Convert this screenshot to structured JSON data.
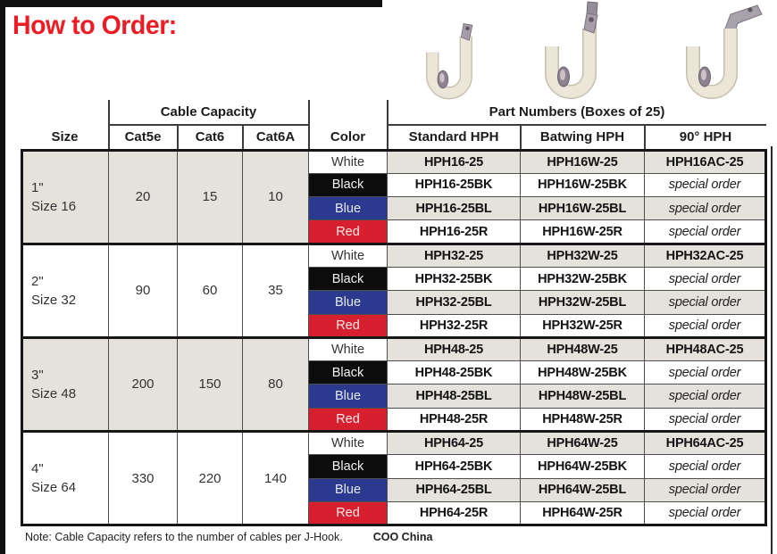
{
  "title": "How to Order:",
  "header": {
    "size": "Size",
    "cable_capacity": "Cable Capacity",
    "cat5e": "Cat5e",
    "cat6": "Cat6",
    "cat6a": "Cat6A",
    "color": "Color",
    "part_numbers": "Part Numbers (Boxes of 25)",
    "standard": "Standard HPH",
    "batwing": "Batwing HPH",
    "ninety": "90° HPH"
  },
  "special_order_label": "special order",
  "photos": [
    {
      "icon": "standard-hph-photo"
    },
    {
      "icon": "batwing-hph-photo"
    },
    {
      "icon": "90-degree-hph-photo"
    }
  ],
  "groups": [
    {
      "size_line1": "1\"",
      "size_line2": "Size 16",
      "cat5e": "20",
      "cat6": "15",
      "cat6a": "10",
      "rows": [
        {
          "color": "White",
          "standard": "HPH16-25",
          "batwing": "HPH16W-25",
          "ninety": "HPH16AC-25"
        },
        {
          "color": "Black",
          "standard": "HPH16-25BK",
          "batwing": "HPH16W-25BK",
          "ninety": "special order"
        },
        {
          "color": "Blue",
          "standard": "HPH16-25BL",
          "batwing": "HPH16W-25BL",
          "ninety": "special order"
        },
        {
          "color": "Red",
          "standard": "HPH16-25R",
          "batwing": "HPH16W-25R",
          "ninety": "special order"
        }
      ]
    },
    {
      "size_line1": "2\"",
      "size_line2": "Size 32",
      "cat5e": "90",
      "cat6": "60",
      "cat6a": "35",
      "rows": [
        {
          "color": "White",
          "standard": "HPH32-25",
          "batwing": "HPH32W-25",
          "ninety": "HPH32AC-25"
        },
        {
          "color": "Black",
          "standard": "HPH32-25BK",
          "batwing": "HPH32W-25BK",
          "ninety": "special order"
        },
        {
          "color": "Blue",
          "standard": "HPH32-25BL",
          "batwing": "HPH32W-25BL",
          "ninety": "special order"
        },
        {
          "color": "Red",
          "standard": "HPH32-25R",
          "batwing": "HPH32W-25R",
          "ninety": "special order"
        }
      ]
    },
    {
      "size_line1": "3\"",
      "size_line2": "Size 48",
      "cat5e": "200",
      "cat6": "150",
      "cat6a": "80",
      "rows": [
        {
          "color": "White",
          "standard": "HPH48-25",
          "batwing": "HPH48W-25",
          "ninety": "HPH48AC-25"
        },
        {
          "color": "Black",
          "standard": "HPH48-25BK",
          "batwing": "HPH48W-25BK",
          "ninety": "special order"
        },
        {
          "color": "Blue",
          "standard": "HPH48-25BL",
          "batwing": "HPH48W-25BL",
          "ninety": "special order"
        },
        {
          "color": "Red",
          "standard": "HPH48-25R",
          "batwing": "HPH48W-25R",
          "ninety": "special order"
        }
      ]
    },
    {
      "size_line1": "4\"",
      "size_line2": "Size 64",
      "cat5e": "330",
      "cat6": "220",
      "cat6a": "140",
      "rows": [
        {
          "color": "White",
          "standard": "HPH64-25",
          "batwing": "HPH64W-25",
          "ninety": "HPH64AC-25"
        },
        {
          "color": "Black",
          "standard": "HPH64-25BK",
          "batwing": "HPH64W-25BK",
          "ninety": "special order"
        },
        {
          "color": "Blue",
          "standard": "HPH64-25BL",
          "batwing": "HPH64W-25BL",
          "ninety": "special order"
        },
        {
          "color": "Red",
          "standard": "HPH64-25R",
          "batwing": "HPH64W-25R",
          "ninety": "special order"
        }
      ]
    }
  ],
  "note": {
    "text": "Note: Cable Capacity refers to the number of cables per J-Hook.",
    "coo": "COO China"
  },
  "colors": {
    "accent_red": "#ed1c24",
    "swatch_black": "#0c0c0c",
    "swatch_blue": "#2b3a8e",
    "swatch_red": "#d6202f",
    "row_shade": "#e5e2dc"
  }
}
